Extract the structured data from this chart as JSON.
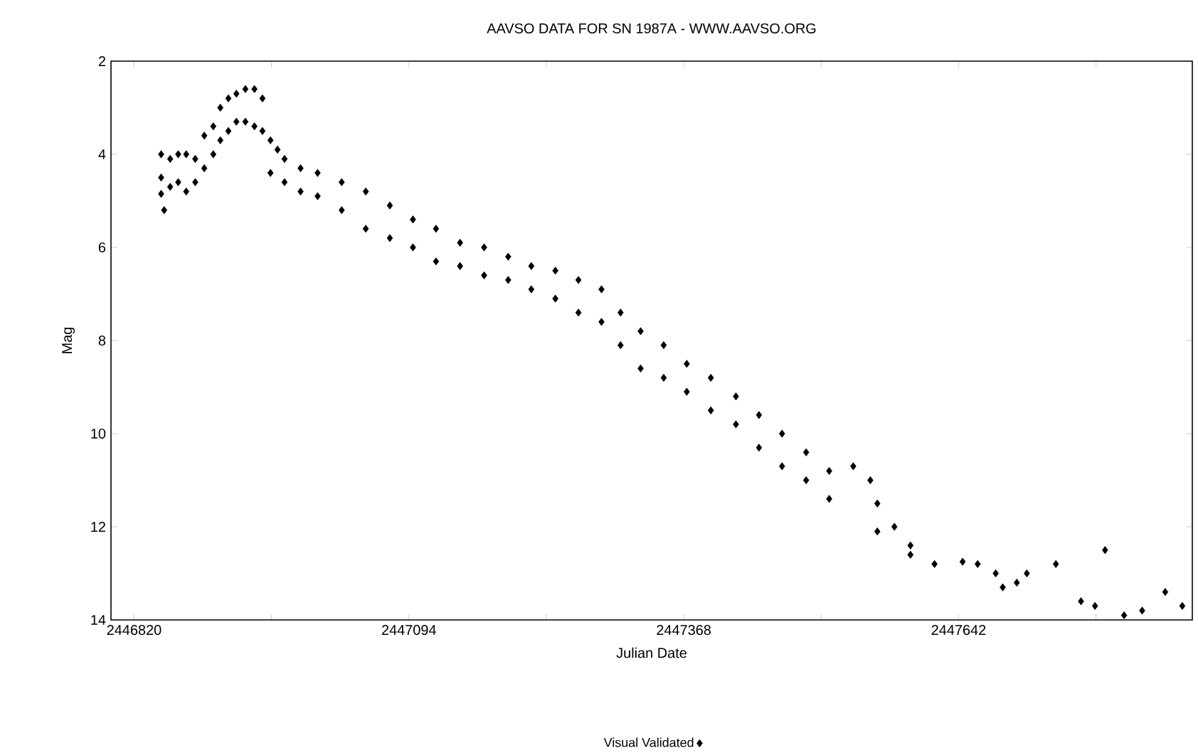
{
  "chart_data": {
    "type": "scatter",
    "title": "AAVSO DATA FOR SN 1987A - WWW.AAVSO.ORG",
    "xlabel": "Julian Date",
    "ylabel": "Mag",
    "xlim": [
      2446797,
      2447875
    ],
    "ylim": [
      14,
      2
    ],
    "xticks": [
      2446820,
      {
        "value": 2446957,
        "label": null
      },
      2447094,
      {
        "value": 2447231,
        "label": null
      },
      2447368,
      {
        "value": 2447505,
        "label": null
      },
      2447642,
      {
        "value": 2447779,
        "label": null
      }
    ],
    "yticks": [
      2,
      4,
      6,
      8,
      10,
      12,
      14
    ],
    "legend": "bottom",
    "marker": "diamond",
    "x": [
      2446847,
      2446847,
      2446847,
      2446850,
      2446856,
      2446856,
      2446864,
      2446864,
      2446872,
      2446872,
      2446881,
      2446881,
      2446890,
      2446890,
      2446899,
      2446899,
      2446906,
      2446906,
      2446914,
      2446914,
      2446922,
      2446922,
      2446931,
      2446931,
      2446940,
      2446940,
      2446948,
      2446948,
      2446956,
      2446956,
      2446963,
      2446970,
      2446970,
      2446986,
      2446986,
      2447003,
      2447003,
      2447027,
      2447027,
      2447051,
      2447051,
      2447075,
      2447075,
      2447098,
      2447098,
      2447121,
      2447121,
      2447145,
      2447145,
      2447169,
      2447169,
      2447193,
      2447193,
      2447216,
      2447216,
      2447240,
      2447240,
      2447263,
      2447263,
      2447286,
      2447286,
      2447305,
      2447305,
      2447325,
      2447325,
      2447348,
      2447348,
      2447371,
      2447371,
      2447395,
      2447395,
      2447420,
      2447420,
      2447443,
      2447443,
      2447466,
      2447466,
      2447490,
      2447490,
      2447513,
      2447513,
      2447537,
      2447554,
      2447561,
      2447561,
      2447578,
      2447594,
      2447594,
      2447618,
      2447646,
      2447661,
      2447679,
      2447686,
      2447700,
      2447710,
      2447739,
      2447764,
      2447778,
      2447788,
      2447807,
      2447825,
      2447848,
      2447865
    ],
    "series": [
      {
        "name": "Visual Validated",
        "color": "#000000",
        "values": [
          4.0,
          4.5,
          4.85,
          5.2,
          4.1,
          4.7,
          4.0,
          4.6,
          4.0,
          4.8,
          4.1,
          4.6,
          3.6,
          4.3,
          3.4,
          4.0,
          3.0,
          3.7,
          2.8,
          3.5,
          2.7,
          3.3,
          2.6,
          3.3,
          2.6,
          3.4,
          2.8,
          3.5,
          3.7,
          4.4,
          3.9,
          4.1,
          4.6,
          4.3,
          4.8,
          4.4,
          4.9,
          4.6,
          5.2,
          4.8,
          5.6,
          5.1,
          5.8,
          5.4,
          6.0,
          5.6,
          6.3,
          5.9,
          6.4,
          6.0,
          6.6,
          6.2,
          6.7,
          6.4,
          6.9,
          6.5,
          7.1,
          6.7,
          7.4,
          6.9,
          7.6,
          7.4,
          8.1,
          7.8,
          8.6,
          8.1,
          8.8,
          8.5,
          9.1,
          8.8,
          9.5,
          9.2,
          9.8,
          9.6,
          10.3,
          10.0,
          10.7,
          10.4,
          11.0,
          10.8,
          11.4,
          10.7,
          11.0,
          11.5,
          12.1,
          12.0,
          12.4,
          12.6,
          12.8,
          12.75,
          12.8,
          13.0,
          13.3,
          13.2,
          13.0,
          12.8,
          13.6,
          13.7,
          12.5,
          13.9,
          13.8,
          13.4,
          13.7
        ]
      }
    ]
  }
}
